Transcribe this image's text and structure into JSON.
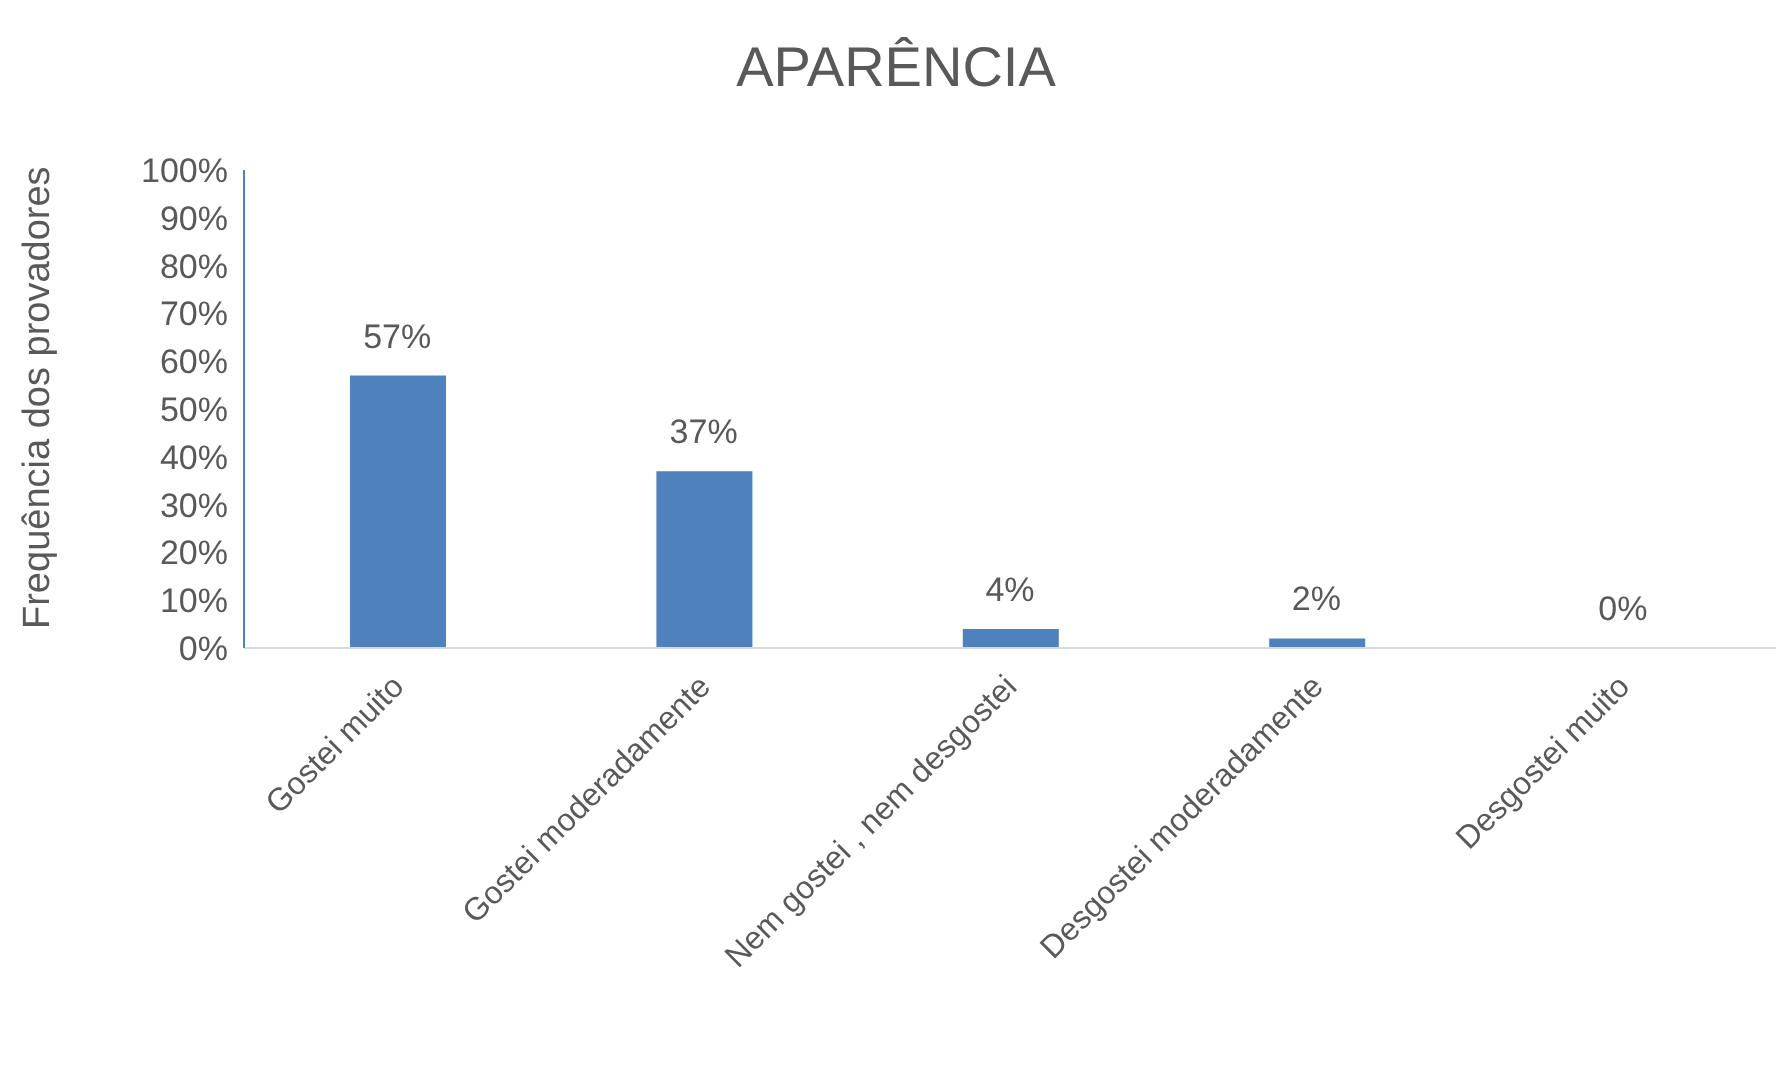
{
  "chart_data": {
    "type": "bar",
    "title": "APARÊNCIA",
    "ylabel": "Frequência dos provadores",
    "categories": [
      "Gostei muito",
      "Gostei moderadamente",
      "Nem gostei , nem desgostei",
      "Desgostei moderadamente",
      "Desgostei muito"
    ],
    "values": [
      57,
      37,
      4,
      2,
      0
    ],
    "value_labels": [
      "57%",
      "37%",
      "4%",
      "2%",
      "0%"
    ],
    "color": "#4f81bd",
    "ylim": [
      0,
      100
    ],
    "yticks": [
      {
        "value": 0,
        "label": "0%"
      },
      {
        "value": 10,
        "label": "10%"
      },
      {
        "value": 20,
        "label": "20%"
      },
      {
        "value": 30,
        "label": "30%"
      },
      {
        "value": 40,
        "label": "40%"
      },
      {
        "value": 50,
        "label": "50%"
      },
      {
        "value": 60,
        "label": "60%"
      },
      {
        "value": 70,
        "label": "70%"
      },
      {
        "value": 80,
        "label": "80%"
      },
      {
        "value": 90,
        "label": "90%"
      },
      {
        "value": 100,
        "label": "100%"
      }
    ],
    "grid": false,
    "legend": false
  }
}
